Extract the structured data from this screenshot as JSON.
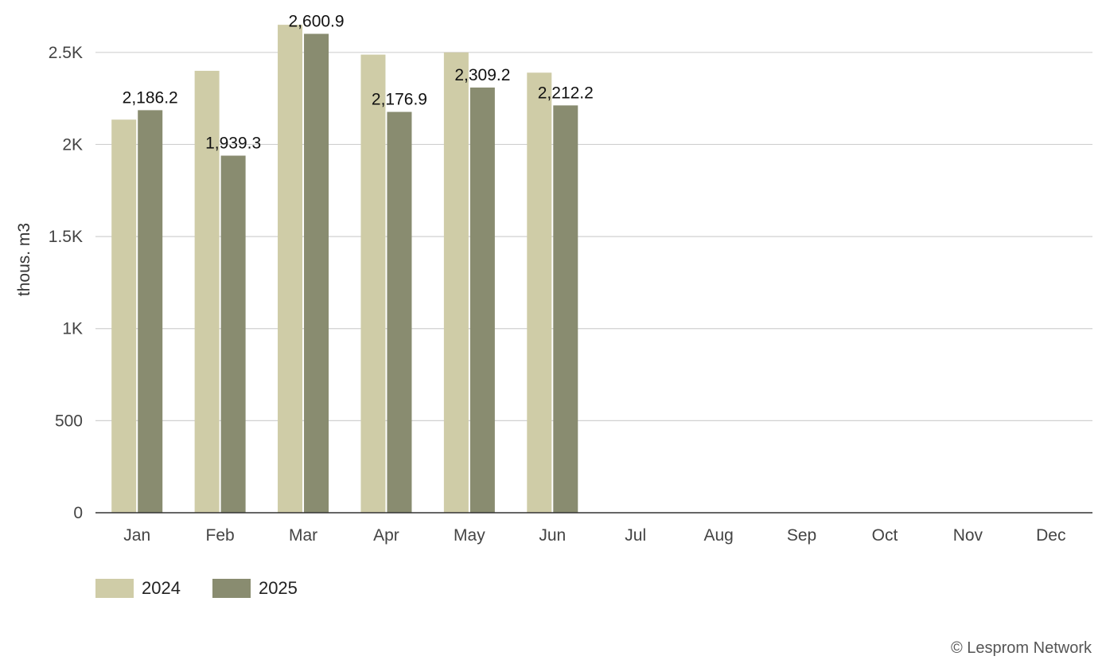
{
  "chart_data": {
    "type": "bar",
    "categories": [
      "Jan",
      "Feb",
      "Mar",
      "Apr",
      "May",
      "Jun",
      "Jul",
      "Aug",
      "Sep",
      "Oct",
      "Nov",
      "Dec"
    ],
    "series": [
      {
        "name": "2024",
        "color": "#cfcca7",
        "values": [
          2135,
          2400,
          2650,
          2488,
          2500,
          2390,
          null,
          null,
          null,
          null,
          null,
          null
        ]
      },
      {
        "name": "2025",
        "color": "#898c70",
        "values": [
          2186.2,
          1939.3,
          2600.9,
          2176.9,
          2309.2,
          2212.2,
          null,
          null,
          null,
          null,
          null,
          null
        ],
        "data_labels": [
          "2,186.2",
          "1,939.3",
          "2,600.9",
          "2,176.9",
          "2,309.2",
          "2,212.2",
          "",
          "",
          "",
          "",
          "",
          ""
        ]
      }
    ],
    "ylabel": "thous. m3",
    "ylim": [
      0,
      2750
    ],
    "yticks": [
      0,
      500,
      1000,
      1500,
      2000,
      2500
    ],
    "ytick_labels": [
      "0",
      "500",
      "1K",
      "1.5K",
      "2K",
      "2.5K"
    ],
    "grid": true,
    "legend_position": "bottom-left"
  },
  "credit": "© Lesprom Network"
}
